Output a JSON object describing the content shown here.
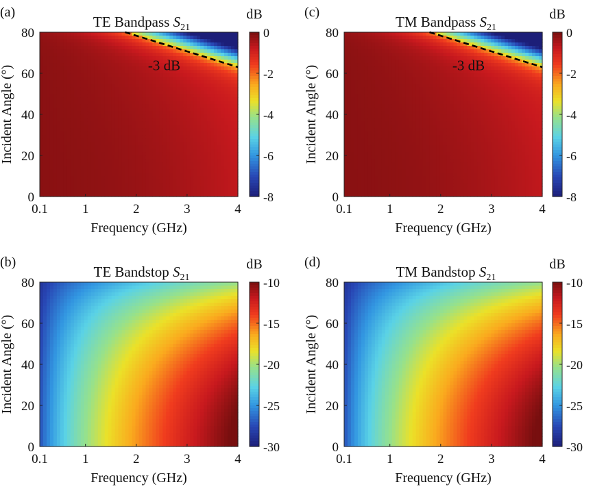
{
  "figure": {
    "xlabel": "Frequency (GHz)",
    "ylabel": "Incident Angle (°)",
    "colorbar_unit": "dB"
  },
  "chart_data": [
    {
      "type": "heatmap",
      "panel_label": "(a)",
      "title_main": "TE Bandpass ",
      "title_var": "S",
      "title_sub": "21",
      "x_ticks": [
        "0.1",
        "1",
        "2",
        "3",
        "4"
      ],
      "x_tick_values": [
        0.1,
        1,
        2,
        3,
        4
      ],
      "y_ticks": [
        "0",
        "20",
        "40",
        "60",
        "80"
      ],
      "y_tick_values": [
        0,
        20,
        40,
        60,
        80
      ],
      "xlim": [
        0.1,
        4
      ],
      "ylim": [
        0,
        80
      ],
      "colorbar_ticks": [
        "0",
        "-2",
        "-4",
        "-6",
        "-8"
      ],
      "colorbar_tick_values": [
        0,
        -2,
        -4,
        -6,
        -8
      ],
      "clim": [
        -8,
        0
      ],
      "contour": {
        "label": "-3 dB",
        "line_x": [
          1.78,
          4.0
        ],
        "line_y": [
          80,
          63
        ]
      },
      "annotation_pos": {
        "x": 2.55,
        "y": 61.5
      },
      "model": "bandpass"
    },
    {
      "type": "heatmap",
      "panel_label": "(c)",
      "title_main": "TM Bandpass ",
      "title_var": "S",
      "title_sub": "21",
      "x_ticks": [
        "0.1",
        "1",
        "2",
        "3",
        "4"
      ],
      "x_tick_values": [
        0.1,
        1,
        2,
        3,
        4
      ],
      "y_ticks": [
        "0",
        "20",
        "40",
        "60",
        "80"
      ],
      "y_tick_values": [
        0,
        20,
        40,
        60,
        80
      ],
      "xlim": [
        0.1,
        4
      ],
      "ylim": [
        0,
        80
      ],
      "colorbar_ticks": [
        "0",
        "-2",
        "-4",
        "-6",
        "-8"
      ],
      "colorbar_tick_values": [
        0,
        -2,
        -4,
        -6,
        -8
      ],
      "clim": [
        -8,
        0
      ],
      "contour": {
        "label": "-3 dB",
        "line_x": [
          1.78,
          4.0
        ],
        "line_y": [
          80,
          63
        ]
      },
      "annotation_pos": {
        "x": 2.55,
        "y": 61.5
      },
      "model": "bandpass"
    },
    {
      "type": "heatmap",
      "panel_label": "(b)",
      "title_main": "TE Bandstop ",
      "title_var": "S",
      "title_sub": "21",
      "x_ticks": [
        "0.1",
        "1",
        "2",
        "3",
        "4"
      ],
      "x_tick_values": [
        0.1,
        1,
        2,
        3,
        4
      ],
      "y_ticks": [
        "0",
        "20",
        "40",
        "60",
        "80"
      ],
      "y_tick_values": [
        0,
        20,
        40,
        60,
        80
      ],
      "xlim": [
        0.1,
        4
      ],
      "ylim": [
        0,
        80
      ],
      "colorbar_ticks": [
        "-10",
        "-15",
        "-20",
        "-25",
        "-30"
      ],
      "colorbar_tick_values": [
        -10,
        -15,
        -20,
        -25,
        -30
      ],
      "clim": [
        -30,
        -10
      ],
      "model": "bandstop"
    },
    {
      "type": "heatmap",
      "panel_label": "(d)",
      "title_main": "TM Bandstop ",
      "title_var": "S",
      "title_sub": "21",
      "x_ticks": [
        "0.1",
        "1",
        "2",
        "3",
        "4"
      ],
      "x_tick_values": [
        0.1,
        1,
        2,
        3,
        4
      ],
      "y_ticks": [
        "0",
        "20",
        "40",
        "60",
        "80"
      ],
      "y_tick_values": [
        0,
        20,
        40,
        60,
        80
      ],
      "xlim": [
        0.1,
        4
      ],
      "ylim": [
        0,
        80
      ],
      "colorbar_ticks": [
        "-10",
        "-15",
        "-20",
        "-25",
        "-30"
      ],
      "colorbar_tick_values": [
        -10,
        -15,
        -20,
        -25,
        -30
      ],
      "clim": [
        -30,
        -10
      ],
      "model": "bandstop"
    }
  ]
}
